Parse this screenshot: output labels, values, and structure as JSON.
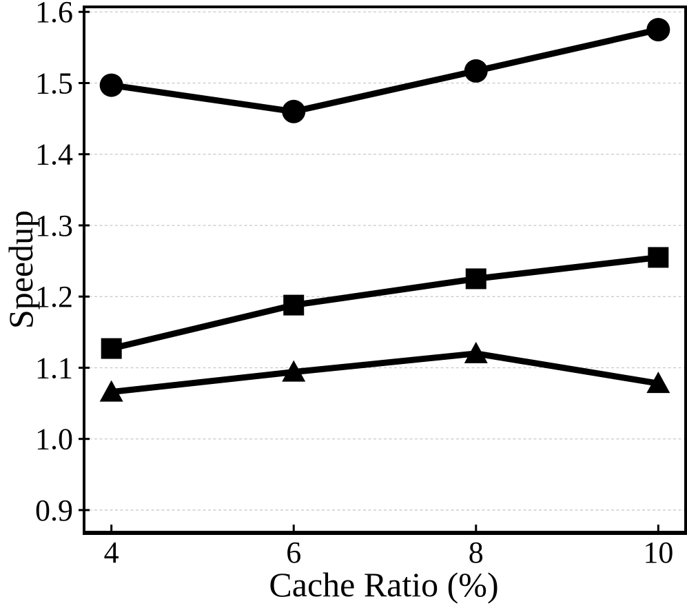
{
  "chart_data": {
    "type": "line",
    "title": "",
    "xlabel": "Cache Ratio (%)",
    "ylabel": "Speedup",
    "x": [
      4,
      6,
      8,
      10
    ],
    "series": [
      {
        "name": "circle-series",
        "marker": "circle",
        "values": [
          1.497,
          1.46,
          1.517,
          1.575
        ]
      },
      {
        "name": "square-series",
        "marker": "square",
        "values": [
          1.127,
          1.188,
          1.225,
          1.255
        ]
      },
      {
        "name": "triangle-series",
        "marker": "triangle",
        "values": [
          1.066,
          1.094,
          1.12,
          1.078
        ]
      }
    ],
    "xticks": [
      4,
      6,
      8,
      10
    ],
    "xtick_labels": [
      "4",
      "6",
      "8",
      "10"
    ],
    "yticks": [
      0.9,
      1.0,
      1.1,
      1.2,
      1.3,
      1.4,
      1.5,
      1.6
    ],
    "ytick_labels": [
      "0.9",
      "1.0",
      "1.1",
      "1.2",
      "1.3",
      "1.4",
      "1.5",
      "1.6"
    ],
    "xlim": [
      3.7,
      10.3
    ],
    "ylim": [
      0.868,
      1.607
    ],
    "grid": "horizontal-dashed",
    "legend": "none",
    "colors": {
      "series": "#000000",
      "axis": "#000000",
      "grid": "#c8c8c8",
      "background": "#ffffff"
    }
  }
}
